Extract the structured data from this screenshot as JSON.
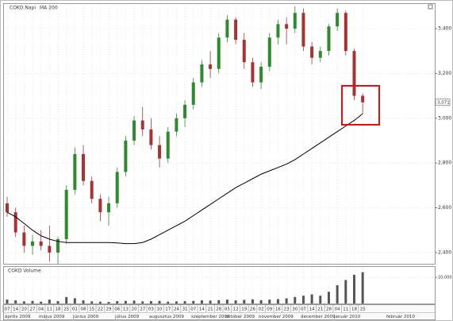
{
  "chart_data": [
    {
      "type": "candlestick",
      "title": "COKD Napi",
      "indicator": "MA 200",
      "categories": [
        "07",
        "14",
        "20",
        "27",
        "04",
        "11",
        "18",
        "25",
        "01",
        "08",
        "15",
        "22",
        "29",
        "06",
        "13",
        "20",
        "27",
        "03",
        "10",
        "17",
        "24",
        "31",
        "07",
        "14",
        "21",
        "28",
        "05",
        "12",
        "19",
        "26",
        "02",
        "09",
        "16",
        "23",
        "30",
        "07",
        "14",
        "21",
        "28",
        "04",
        "11",
        "18",
        "25"
      ],
      "months": [
        "április 2009",
        "május 2009",
        "június 2009",
        "július 2009",
        "augusztus 2009",
        "szeptember 2009",
        "október 2009",
        "november 2009",
        "december 2009",
        "január 2010",
        "február 2010"
      ],
      "open": [
        2620,
        2580,
        2490,
        2430,
        2450,
        2430,
        2400,
        2460,
        2680,
        2840,
        2720,
        2640,
        2580,
        2620,
        2760,
        2900,
        2990,
        2950,
        2880,
        2820,
        2940,
        3000,
        3060,
        3160,
        3240,
        3220,
        3360,
        3440,
        3350,
        3250,
        3160,
        3230,
        3360,
        3420,
        3400,
        3470,
        3320,
        3270,
        3300,
        3410,
        3470,
        3300,
        3100
      ],
      "high": [
        2650,
        2600,
        2520,
        2480,
        2500,
        2520,
        2470,
        2700,
        2870,
        2880,
        2740,
        2660,
        2650,
        2780,
        2920,
        3010,
        3050,
        3000,
        2920,
        2960,
        3020,
        3080,
        3180,
        3260,
        3300,
        3380,
        3460,
        3450,
        3380,
        3270,
        3250,
        3380,
        3440,
        3450,
        3500,
        3490,
        3340,
        3320,
        3420,
        3490,
        3480,
        3310,
        3110
      ],
      "low": [
        2560,
        2470,
        2400,
        2390,
        2410,
        2360,
        2350,
        2440,
        2660,
        2700,
        2620,
        2540,
        2520,
        2600,
        2740,
        2880,
        2920,
        2860,
        2780,
        2800,
        2920,
        2960,
        3040,
        3140,
        3180,
        3200,
        3340,
        3330,
        3220,
        3140,
        3130,
        3210,
        3330,
        3330,
        3380,
        3300,
        3240,
        3250,
        3280,
        3390,
        3280,
        3080,
        3020
      ],
      "close": [
        2580,
        2490,
        2430,
        2450,
        2430,
        2400,
        2460,
        2680,
        2840,
        2720,
        2640,
        2580,
        2620,
        2760,
        2900,
        2990,
        2950,
        2880,
        2820,
        2940,
        3000,
        3060,
        3160,
        3240,
        3220,
        3360,
        3440,
        3350,
        3250,
        3160,
        3230,
        3360,
        3420,
        3400,
        3470,
        3320,
        3270,
        3300,
        3410,
        3470,
        3300,
        3100,
        3071
      ],
      "up_color": "#2f8a2f",
      "down_color": "#a83232",
      "series": [
        {
          "name": "MA 200",
          "color": "#000000",
          "values": [
            2580,
            2560,
            2530,
            2500,
            2475,
            2460,
            2450,
            2445,
            2445,
            2445,
            2445,
            2445,
            2445,
            2443,
            2440,
            2440,
            2445,
            2460,
            2480,
            2500,
            2520,
            2540,
            2565,
            2590,
            2615,
            2640,
            2665,
            2690,
            2710,
            2730,
            2750,
            2765,
            2780,
            2795,
            2815,
            2840,
            2865,
            2890,
            2915,
            2940,
            2965,
            2990,
            3020
          ]
        }
      ],
      "price_label": "3,071",
      "ylim": [
        2350,
        3510
      ],
      "yticks": [
        {
          "value": 2400,
          "label": "2,400"
        },
        {
          "value": 2600,
          "label": "2,600"
        },
        {
          "value": 2800,
          "label": "2,800"
        },
        {
          "value": 3000,
          "label": "3,000"
        },
        {
          "value": 3200,
          "label": "3,200"
        },
        {
          "value": 3400,
          "label": "3,400"
        }
      ],
      "grid": true
    },
    {
      "type": "bar",
      "title": "COKD Volume",
      "color": "#555555",
      "values": [
        1500,
        1200,
        800,
        1000,
        700,
        1500,
        900,
        2500,
        2000,
        1200,
        800,
        700,
        600,
        900,
        1000,
        1100,
        800,
        900,
        1000,
        700,
        800,
        900,
        1000,
        1200,
        1100,
        1300,
        1500,
        1200,
        1400,
        1600,
        1300,
        1500,
        1700,
        2000,
        2500,
        3000,
        3500,
        3000,
        4500,
        7000,
        9000,
        11000,
        12000
      ],
      "ylim": [
        0,
        14000
      ],
      "yticks": [
        {
          "value": 10000,
          "label": "10,000"
        }
      ],
      "grid": true
    }
  ]
}
